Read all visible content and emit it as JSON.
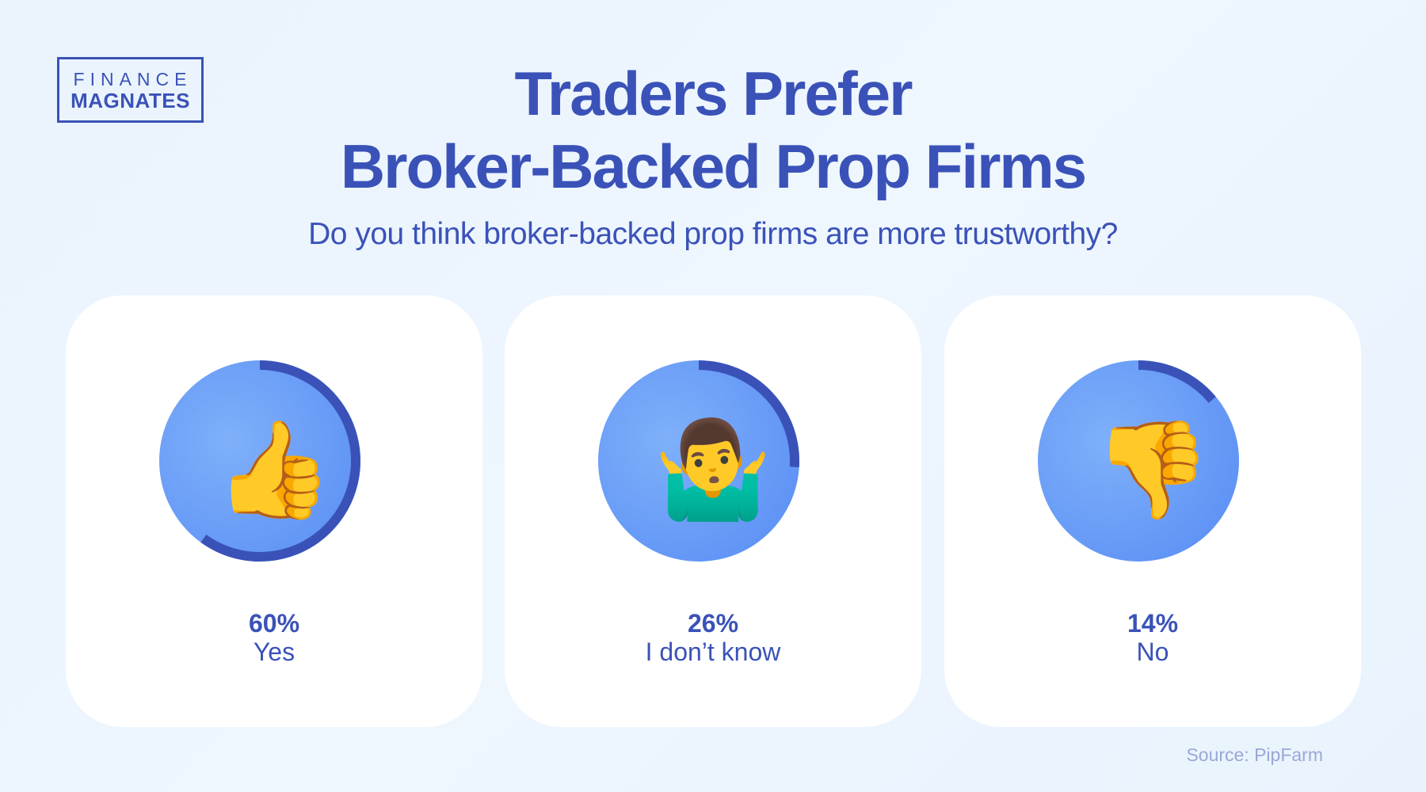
{
  "logo": {
    "line1": "FINANCE",
    "line2": "MAGNATES"
  },
  "title": {
    "line1": "Traders Prefer",
    "line2": "Broker-Backed Prop Firms"
  },
  "subtitle": "Do you think broker-backed prop firms are more trustworthy?",
  "chart_data": {
    "type": "pie",
    "title": "Do you think broker-backed prop firms are more trustworthy?",
    "categories": [
      "Yes",
      "I don’t know",
      "No"
    ],
    "values": [
      60,
      26,
      14
    ],
    "labels": [
      "60%",
      "26%",
      "14%"
    ],
    "icons": [
      "thumbs-up-icon",
      "shrug-icon",
      "thumbs-down-icon"
    ],
    "emoji": [
      "👍",
      "🤷‍♂️",
      "👎"
    ],
    "colors": {
      "ring": "#3a52b8",
      "disc": "#6a9ef8",
      "background": "#ffffff"
    }
  },
  "source": "Source: PipFarm"
}
